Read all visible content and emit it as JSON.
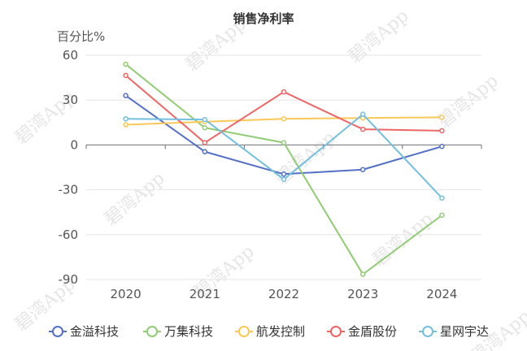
{
  "chart_data": {
    "type": "line",
    "title": "销售净利率",
    "y_unit_label": "百分比%",
    "categories": [
      "2020",
      "2021",
      "2022",
      "2023",
      "2024"
    ],
    "ylim": [
      -90,
      60
    ],
    "yticks": [
      60,
      30,
      0,
      -30,
      -60,
      -90
    ],
    "grid": true,
    "legend_position": "bottom",
    "series": [
      {
        "name": "金溢科技",
        "color": "#5470c6",
        "values": [
          33,
          -4.5,
          -19.5,
          -16.5,
          -1
        ]
      },
      {
        "name": "万集科技",
        "color": "#91cc75",
        "values": [
          54,
          11.5,
          1.5,
          -86.5,
          -47
        ]
      },
      {
        "name": "航发控制",
        "color": "#fac858",
        "values": [
          13.5,
          15.5,
          17.5,
          18,
          18.5
        ]
      },
      {
        "name": "金盾股份",
        "color": "#ee6666",
        "values": [
          46.5,
          1.5,
          35.5,
          10.5,
          9.5
        ]
      },
      {
        "name": "星网宇达",
        "color": "#73c0de",
        "values": [
          17.5,
          17,
          -23,
          20.5,
          -35.5
        ]
      }
    ]
  },
  "watermark": "碧湾App"
}
